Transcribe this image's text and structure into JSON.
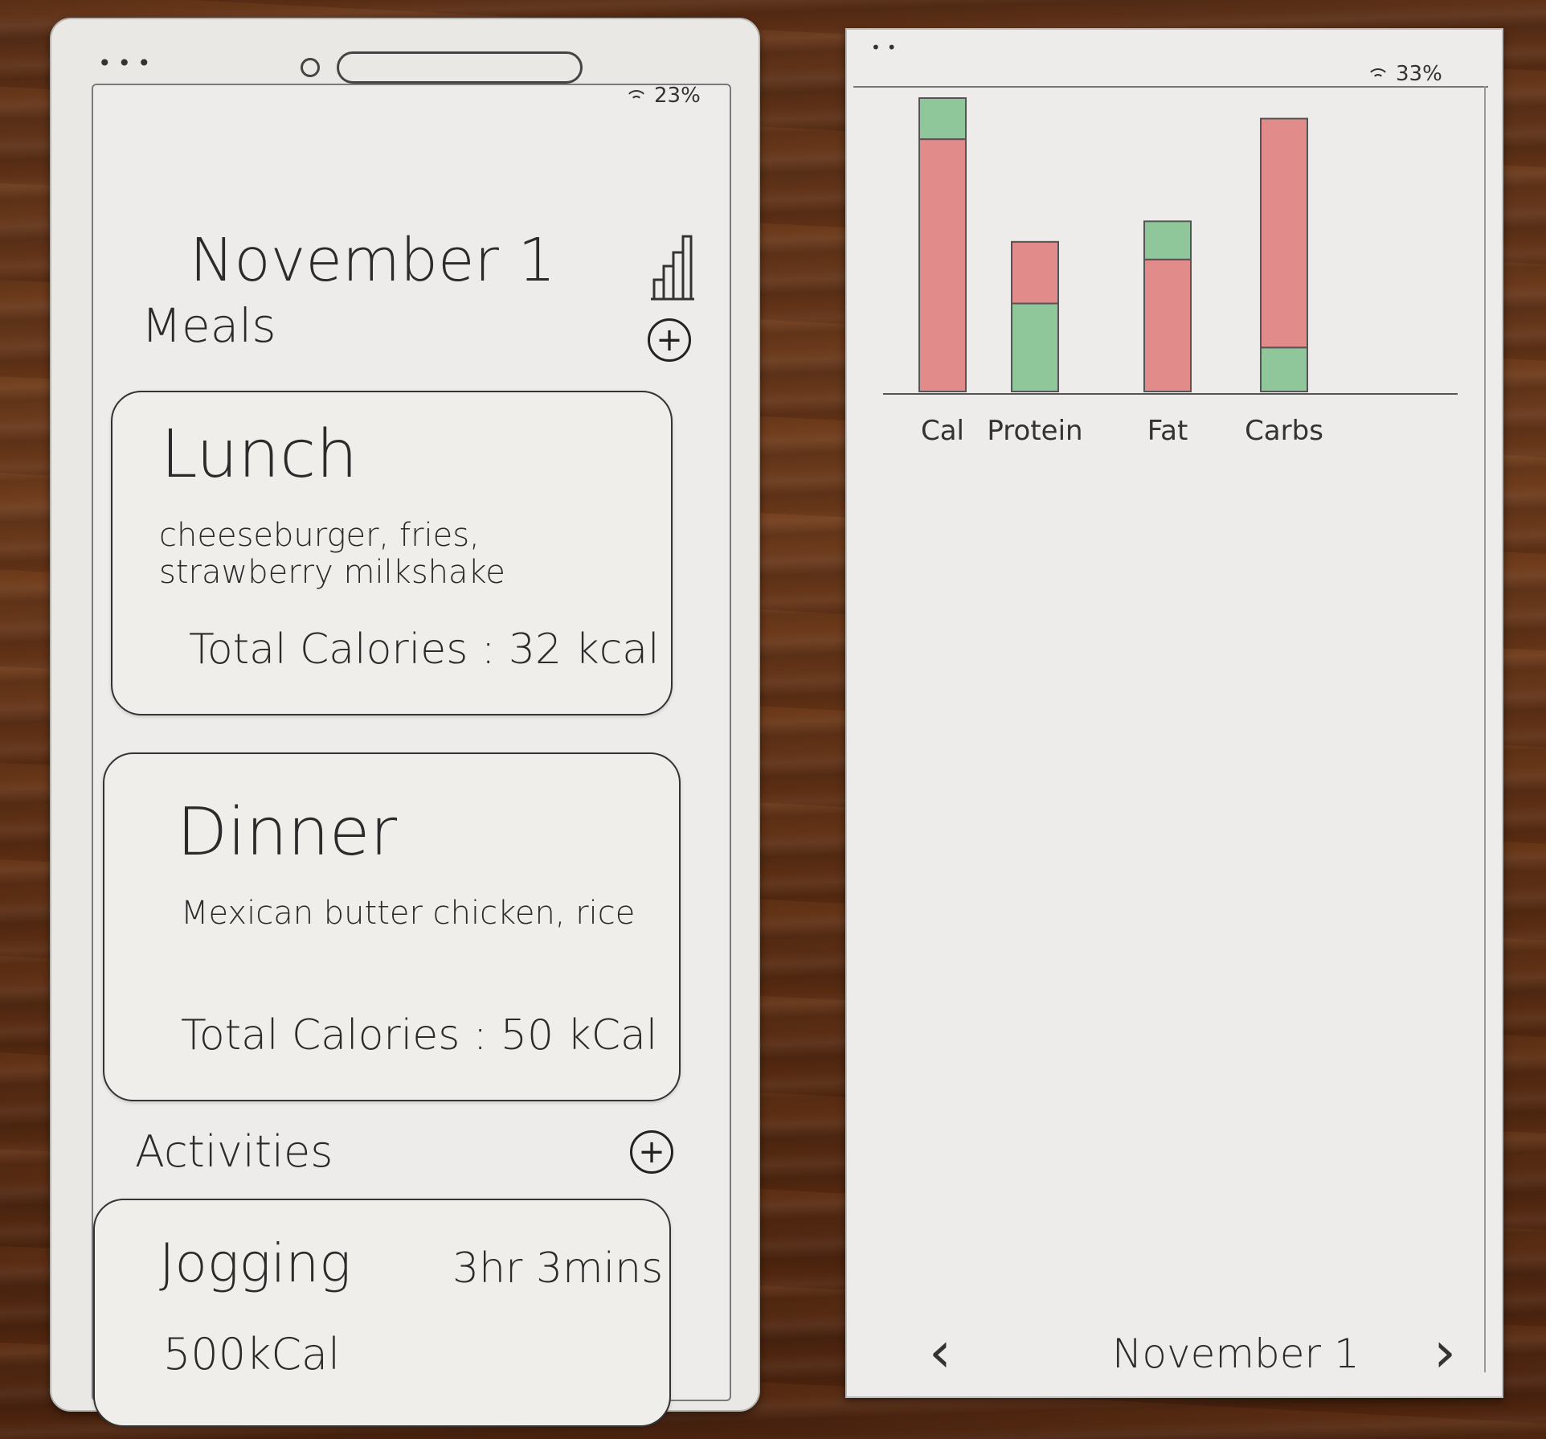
{
  "left_screen": {
    "status": {
      "battery": "23%"
    },
    "date_title": "November 1",
    "meals_label": "Meals",
    "meals": [
      {
        "title": "Lunch",
        "description": "cheeseburger, fries, strawberry milkshake",
        "total": "Total Calories : 32 kcal"
      },
      {
        "title": "Dinner",
        "description": "Mexican butter chicken, rice",
        "total": "Total Calories : 50 kCal"
      }
    ],
    "activities_label": "Activities",
    "activities": [
      {
        "title": "Jogging",
        "duration": "3hr 3mins",
        "calories": "500kCal"
      }
    ]
  },
  "right_screen": {
    "status": {
      "battery": "33%"
    },
    "footer": {
      "date_label": "November 1",
      "prev_icon": "chevron-left-icon",
      "next_icon": "chevron-right-icon"
    }
  },
  "chart_data": {
    "type": "bar",
    "categories": [
      "Cal",
      "Protein",
      "Fat",
      "Carbs"
    ],
    "stacked": true,
    "series": [
      {
        "values": [
          0.86,
          0.21,
          0.45,
          0.78
        ],
        "color": "#e28b8b"
      },
      {
        "values": [
          0.14,
          0.3,
          0.13,
          0.15
        ],
        "color": "#8fc79a"
      }
    ],
    "ylim": [
      0,
      1
    ],
    "grid": false,
    "legend": "none"
  },
  "colors": {
    "paper": "#edecea",
    "ink": "#2b2b2b",
    "red": "#e28b8b",
    "green": "#8fc79a"
  }
}
